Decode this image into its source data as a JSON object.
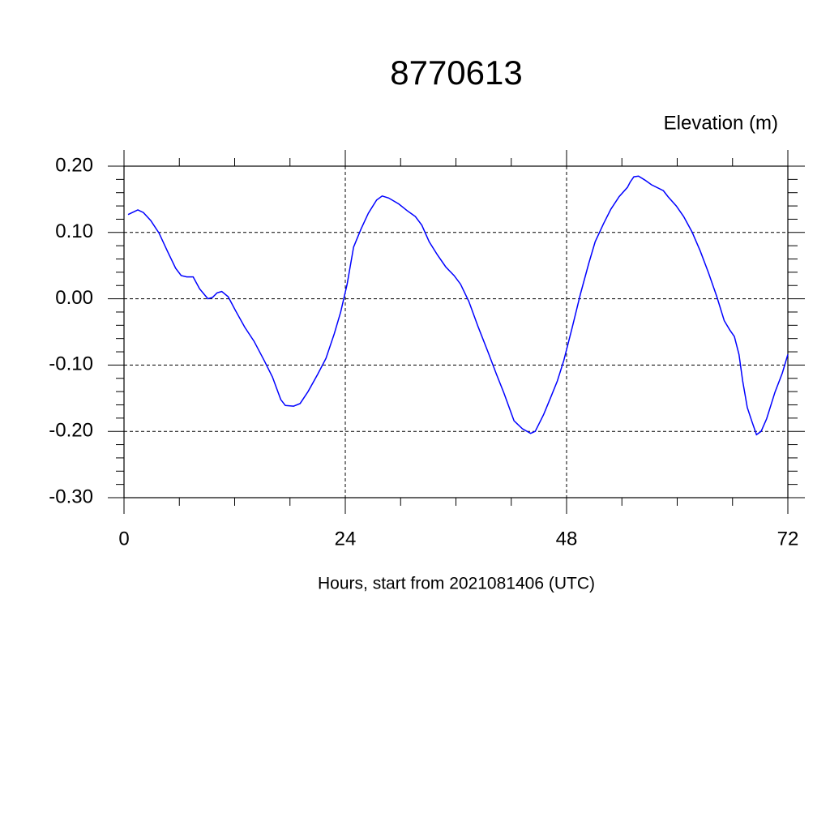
{
  "chart_data": {
    "type": "line",
    "title": "8770613",
    "ylabel": "Elevation (m)",
    "xlabel": "Hours, start from 2021081406 (UTC)",
    "x": [
      0.44,
      1.5,
      2.1,
      2.9,
      3.8,
      4.7,
      5.6,
      6.2,
      6.8,
      7.5,
      8.2,
      9.1,
      9.6,
      10.1,
      10.6,
      11.3,
      12.1,
      13.1,
      14.1,
      15.2,
      16.1,
      17.0,
      17.5,
      18.4,
      19.1,
      19.96,
      21.0,
      21.9,
      22.8,
      23.5,
      24.2,
      24.9,
      25.7,
      26.5,
      27.4,
      28.0,
      28.7,
      29.8,
      30.7,
      31.6,
      32.3,
      33.1,
      34.0,
      34.9,
      35.8,
      36.5,
      37.4,
      38.4,
      39.5,
      40.4,
      41.2,
      42.3,
      43.2,
      44.1,
      44.6,
      45.5,
      46.3,
      47.0,
      47.7,
      48.6,
      49.5,
      50.4,
      51.1,
      52.0,
      52.8,
      53.7,
      54.6,
      54.9,
      55.3,
      55.8,
      56.5,
      57.2,
      58.5,
      59.0,
      59.9,
      60.7,
      61.6,
      62.5,
      63.4,
      64.3,
      65.1,
      65.7,
      66.2,
      66.7,
      67.1,
      67.6,
      68.1,
      68.6,
      69.1,
      69.7,
      70.6,
      71.4,
      72.0
    ],
    "series": [
      {
        "name": "Elevation",
        "color": "#0000ff",
        "values": [
          0.127,
          0.134,
          0.13,
          0.118,
          0.099,
          0.072,
          0.046,
          0.035,
          0.033,
          0.033,
          0.015,
          -0.0,
          0.002,
          0.009,
          0.011,
          0.003,
          -0.018,
          -0.043,
          -0.064,
          -0.093,
          -0.118,
          -0.152,
          -0.161,
          -0.162,
          -0.158,
          -0.14,
          -0.114,
          -0.09,
          -0.053,
          -0.02,
          0.022,
          0.078,
          0.105,
          0.129,
          0.149,
          0.155,
          0.152,
          0.143,
          0.133,
          0.124,
          0.111,
          0.086,
          0.066,
          0.048,
          0.035,
          0.022,
          -0.004,
          -0.042,
          -0.081,
          -0.114,
          -0.142,
          -0.184,
          -0.196,
          -0.203,
          -0.2,
          -0.175,
          -0.148,
          -0.124,
          -0.093,
          -0.044,
          0.007,
          0.053,
          0.086,
          0.113,
          0.135,
          0.154,
          0.168,
          0.176,
          0.184,
          0.185,
          0.179,
          0.172,
          0.163,
          0.154,
          0.14,
          0.124,
          0.101,
          0.072,
          0.039,
          0.003,
          -0.033,
          -0.047,
          -0.057,
          -0.084,
          -0.124,
          -0.164,
          -0.185,
          -0.205,
          -0.2,
          -0.181,
          -0.141,
          -0.112,
          -0.084
        ]
      }
    ],
    "xlim": [
      0,
      72
    ],
    "xticks": [
      0,
      24,
      48,
      72
    ],
    "ylim": [
      -0.3,
      0.2
    ],
    "yticks": [
      {
        "value": -0.3,
        "label": "-0.30"
      },
      {
        "value": -0.2,
        "label": "-0.20"
      },
      {
        "value": -0.1,
        "label": "-0.10"
      },
      {
        "value": 0,
        "label": "0.00"
      },
      {
        "value": 0.1,
        "label": "0.10"
      },
      {
        "value": 0.2,
        "label": "0.20"
      }
    ],
    "grid": true
  }
}
